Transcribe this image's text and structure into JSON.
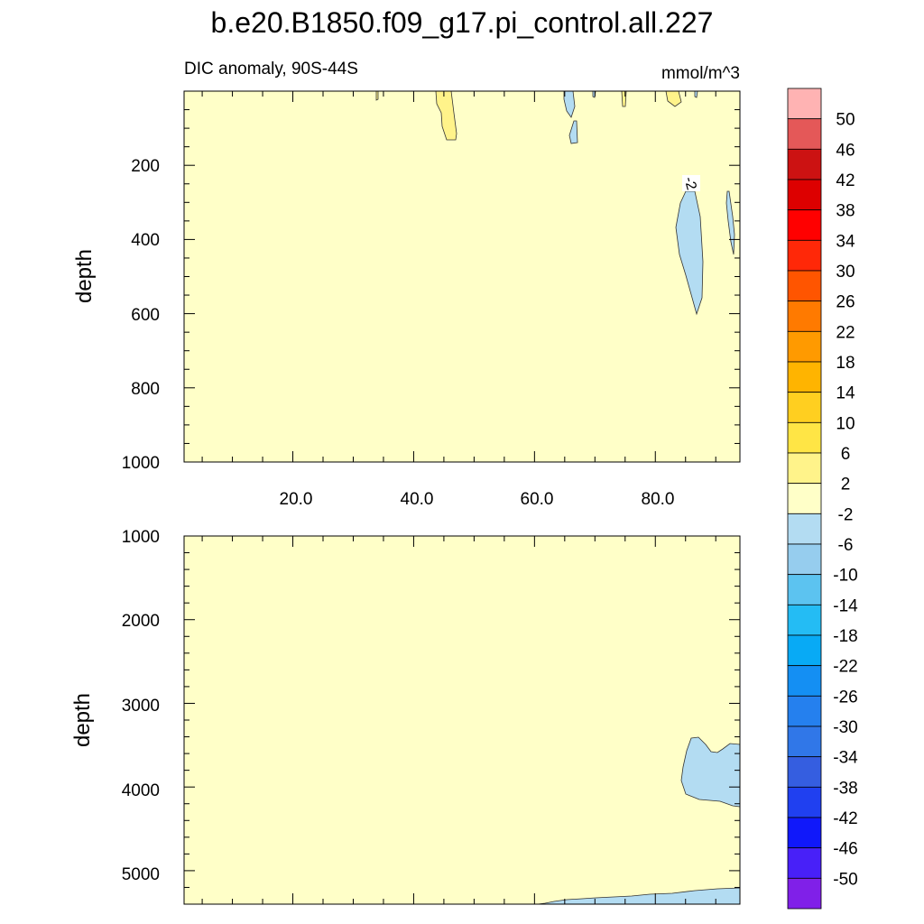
{
  "figure": {
    "title": "b.e20.B1850.f09_g17.pi_control.all.227",
    "left_string": "DIC anomaly, 90S-44S",
    "right_string": "mmol/m^3"
  },
  "chart_data": [
    {
      "type": "heatmap",
      "panel": "upper",
      "ylabel": "depth",
      "ylim": [
        1000,
        0
      ],
      "y_ticks": [
        "200",
        "400",
        "600",
        "800",
        "1000"
      ],
      "x_ticks": [
        "20.0",
        "40.0",
        "60.0",
        "80.0"
      ],
      "xlim": [
        2,
        94
      ],
      "background_level": "-2 to 2",
      "contour_label": "-2",
      "regions": [
        {
          "level": "-6 to -2",
          "x_range": [
            83,
            87.5
          ],
          "depth_range": [
            250,
            600
          ]
        },
        {
          "level": "-6 to -2",
          "x_range": [
            91,
            92.5
          ],
          "depth_range": [
            270,
            440
          ]
        },
        {
          "level": "-6 to -2",
          "x_range": [
            64.5,
            66
          ],
          "depth_range": [
            0,
            60
          ]
        },
        {
          "level": "-6 to -2",
          "x_range": [
            65,
            66.5
          ],
          "depth_range": [
            80,
            140
          ]
        },
        {
          "level": "2 to 6",
          "x_range": [
            43,
            46
          ],
          "depth_range": [
            0,
            130
          ]
        },
        {
          "level": "2 to 6",
          "x_range": [
            79,
            81.5
          ],
          "depth_range": [
            0,
            40
          ]
        }
      ]
    },
    {
      "type": "heatmap",
      "panel": "lower",
      "ylabel": "depth",
      "ylim": [
        5400,
        1000
      ],
      "y_ticks": [
        "1000",
        "2000",
        "3000",
        "4000",
        "5000"
      ],
      "xlim": [
        2,
        94
      ],
      "background_level": "-2 to 2",
      "regions": [
        {
          "level": "-6 to -2",
          "x_range": [
            82.5,
            94
          ],
          "depth_range": [
            3400,
            4220
          ]
        },
        {
          "level": "-6 to -2",
          "x_range": [
            62,
            94
          ],
          "depth_range": [
            5180,
            5400
          ]
        }
      ]
    }
  ],
  "colorbar": {
    "labels": [
      "50",
      "46",
      "42",
      "38",
      "34",
      "30",
      "26",
      "22",
      "18",
      "14",
      "10",
      "6",
      "2",
      "-2",
      "-6",
      "-10",
      "-14",
      "-18",
      "-22",
      "-26",
      "-30",
      "-34",
      "-38",
      "-42",
      "-46",
      "-50"
    ],
    "colors": [
      "#ffb3b3",
      "#e45858",
      "#cc1212",
      "#dd0000",
      "#ff0000",
      "#ff2808",
      "#ff5500",
      "#ff7a00",
      "#ff9a00",
      "#ffb400",
      "#ffcf20",
      "#ffe545",
      "#fff38a",
      "#ffffc8",
      "#b3dcf2",
      "#96cdee",
      "#5cc3f0",
      "#24bcf4",
      "#08aaf5",
      "#148ff3",
      "#2580ee",
      "#3077e8",
      "#355ee0",
      "#2040f0",
      "#1018fa",
      "#4820f8",
      "#8020e8"
    ]
  }
}
